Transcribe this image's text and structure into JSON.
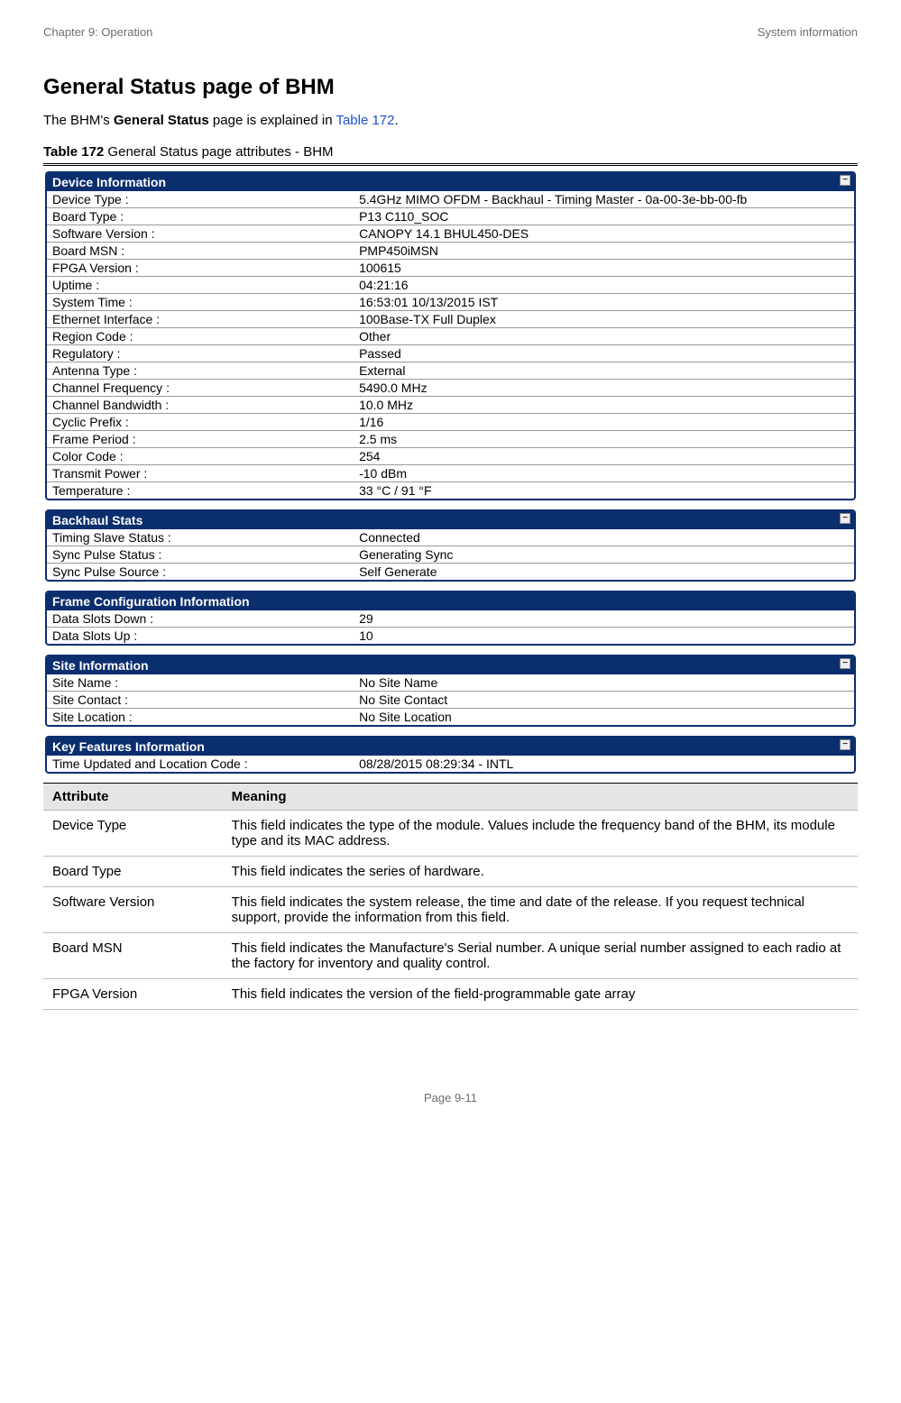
{
  "header": {
    "left": "Chapter 9:  Operation",
    "right": "System information"
  },
  "title": "General Status page of BHM",
  "intro": {
    "pre": "The BHM's ",
    "bold": "General Status",
    "mid": " page is explained in ",
    "link": "Table 172",
    "post": "."
  },
  "caption": {
    "bold": "Table 172",
    "rest": " General Status page attributes - BHM"
  },
  "panels": [
    {
      "title": "Device Information",
      "toggle": true,
      "rows": [
        [
          "Device Type :",
          "5.4GHz MIMO OFDM - Backhaul - Timing Master - 0a-00-3e-bb-00-fb"
        ],
        [
          "Board Type :",
          "P13 C110_SOC"
        ],
        [
          "Software Version :",
          "CANOPY 14.1 BHUL450-DES"
        ],
        [
          "Board MSN :",
          "PMP450iMSN"
        ],
        [
          "FPGA Version :",
          "100615"
        ],
        [
          "Uptime :",
          "04:21:16"
        ],
        [
          "System Time :",
          "16:53:01 10/13/2015 IST"
        ],
        [
          "Ethernet Interface :",
          "100Base-TX Full Duplex"
        ],
        [
          "Region Code :",
          "Other"
        ],
        [
          "Regulatory :",
          "Passed"
        ],
        [
          "Antenna Type :",
          "External"
        ],
        [
          "Channel Frequency :",
          "5490.0 MHz"
        ],
        [
          "Channel Bandwidth :",
          "10.0 MHz"
        ],
        [
          "Cyclic Prefix :",
          "1/16"
        ],
        [
          "Frame Period :",
          "2.5 ms"
        ],
        [
          "Color Code :",
          "254"
        ],
        [
          "Transmit Power :",
          "-10 dBm"
        ],
        [
          "Temperature :",
          "33 °C / 91 °F"
        ]
      ]
    },
    {
      "title": "Backhaul Stats",
      "toggle": true,
      "rows": [
        [
          "Timing Slave Status :",
          "Connected"
        ],
        [
          "Sync Pulse Status :",
          "Generating Sync"
        ],
        [
          "Sync Pulse Source :",
          "Self Generate"
        ]
      ]
    },
    {
      "title": "Frame Configuration Information",
      "toggle": false,
      "rows": [
        [
          "Data Slots Down :",
          "29"
        ],
        [
          "Data Slots Up :",
          "10"
        ]
      ]
    },
    {
      "title": "Site Information",
      "toggle": true,
      "rows": [
        [
          "Site Name :",
          "No Site Name"
        ],
        [
          "Site Contact :",
          "No Site Contact"
        ],
        [
          "Site Location :",
          "No Site Location"
        ]
      ]
    },
    {
      "title": "Key Features Information",
      "toggle": true,
      "rows": [
        [
          "Time Updated and Location Code :",
          "08/28/2015 08:29:34 - INTL"
        ]
      ]
    }
  ],
  "meta": {
    "headers": {
      "attr": "Attribute",
      "meaning": "Meaning"
    },
    "rows": [
      [
        "Device Type",
        "This field indicates the type of the module. Values include the frequency band of the BHM, its module type and its MAC address."
      ],
      [
        "Board Type",
        "This field indicates the series of hardware."
      ],
      [
        "Software Version",
        "This field indicates the system release, the time and date of the release. If you request technical support, provide the information from this field."
      ],
      [
        "Board MSN",
        "This field indicates the Manufacture's Serial number. A unique serial number assigned to each radio at the factory for inventory and quality control."
      ],
      [
        "FPGA Version",
        "This field indicates the version of the field-programmable gate array"
      ]
    ]
  },
  "footer": "Page 9-11"
}
